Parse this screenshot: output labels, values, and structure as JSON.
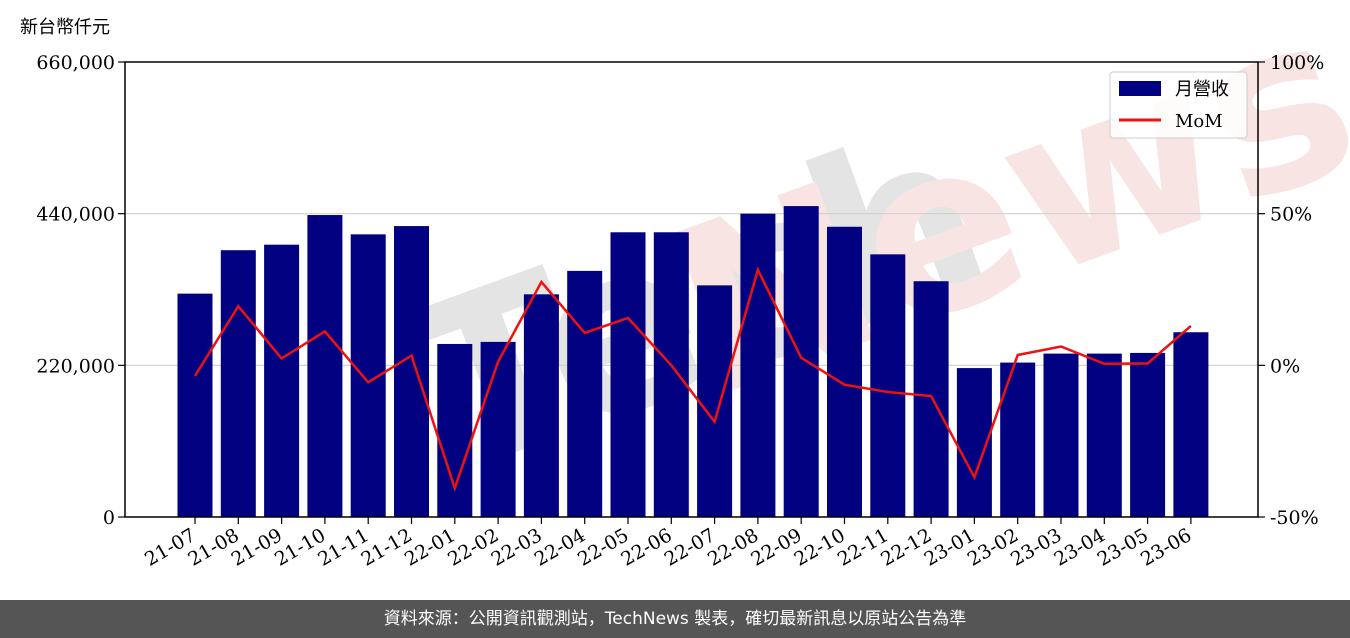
{
  "chart_data": {
    "type": "bar",
    "unit_label": "新台幣仟元",
    "categories": [
      "21-07",
      "21-08",
      "21-09",
      "21-10",
      "21-11",
      "21-12",
      "22-01",
      "22-02",
      "22-03",
      "22-04",
      "22-05",
      "22-06",
      "22-07",
      "22-08",
      "22-09",
      "22-10",
      "22-11",
      "22-12",
      "23-01",
      "23-02",
      "23-03",
      "23-04",
      "23-05",
      "23-06"
    ],
    "series": [
      {
        "name": "月營收",
        "axis": "left",
        "color": "#000080",
        "values": [
          324000,
          387000,
          395000,
          438000,
          410000,
          422000,
          251000,
          254000,
          323000,
          357000,
          413000,
          413000,
          336000,
          440000,
          451000,
          421000,
          381000,
          342000,
          216000,
          224000,
          237000,
          237000,
          238000,
          268000
        ]
      },
      {
        "name": "MoM",
        "axis": "right",
        "type": "line",
        "color": "#ee1111",
        "values": [
          -3.5,
          19.5,
          2.3,
          11.2,
          -5.6,
          3.2,
          -40.5,
          1.2,
          27.5,
          10.7,
          15.6,
          0.0,
          -18.6,
          31.5,
          2.5,
          -6.4,
          -8.8,
          -10.1,
          -36.9,
          3.4,
          6.2,
          0.5,
          0.6,
          13.0
        ]
      }
    ],
    "left_axis": {
      "ylim": [
        0,
        660000
      ],
      "ticks": [
        0,
        220000,
        440000,
        660000
      ],
      "tick_labels": [
        "0",
        "220,000",
        "440,000",
        "660,000"
      ]
    },
    "right_axis": {
      "ylim": [
        -50,
        100
      ],
      "ticks": [
        -50,
        0,
        50,
        100
      ],
      "tick_labels": [
        "-50%",
        "0%",
        "50%",
        "100%"
      ]
    },
    "grid": "horizontal",
    "legend_position": "top-right",
    "watermark": "TechNews"
  },
  "footer": {
    "text": "資料來源：公開資訊觀測站，TechNews 製表，確切最新訊息以原站公告為準"
  }
}
